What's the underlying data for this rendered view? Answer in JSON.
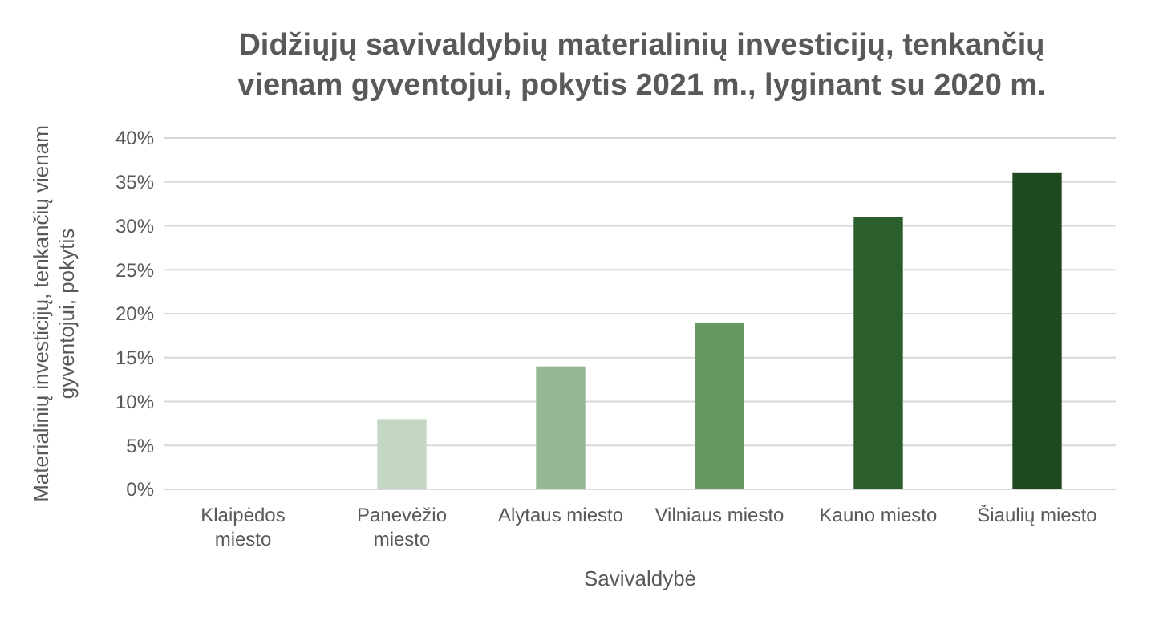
{
  "chart_data": {
    "type": "bar",
    "title": "Didžiųjų savivaldybių materialinių investicijų, tenkančių vienam gyventojui, pokytis 2021 m., lyginant su 2020 m.",
    "xlabel": "Savivaldybė",
    "ylabel": "Materialinių investicijų, tenkančių vienam gyventojui, pokytis",
    "categories": [
      "Klaipėdos miesto",
      "Panevėžio miesto",
      "Alytaus miesto",
      "Vilniaus miesto",
      "Kauno miesto",
      "Šiaulių miesto"
    ],
    "values": [
      0,
      8,
      14,
      19,
      31,
      36
    ],
    "colors": [
      "#e2ede2",
      "#c3d7c3",
      "#93b893",
      "#66995f",
      "#2a5e2a",
      "#1f4a1f"
    ],
    "ylim": [
      0,
      40
    ],
    "yticks": [
      {
        "value": 0,
        "label": "0%"
      },
      {
        "value": 5,
        "label": "5%"
      },
      {
        "value": 10,
        "label": "10%"
      },
      {
        "value": 15,
        "label": "15%"
      },
      {
        "value": 20,
        "label": "20%"
      },
      {
        "value": 25,
        "label": "25%"
      },
      {
        "value": 30,
        "label": "30%"
      },
      {
        "value": 35,
        "label": "35%"
      },
      {
        "value": 40,
        "label": "40%"
      }
    ],
    "grid": "y"
  }
}
